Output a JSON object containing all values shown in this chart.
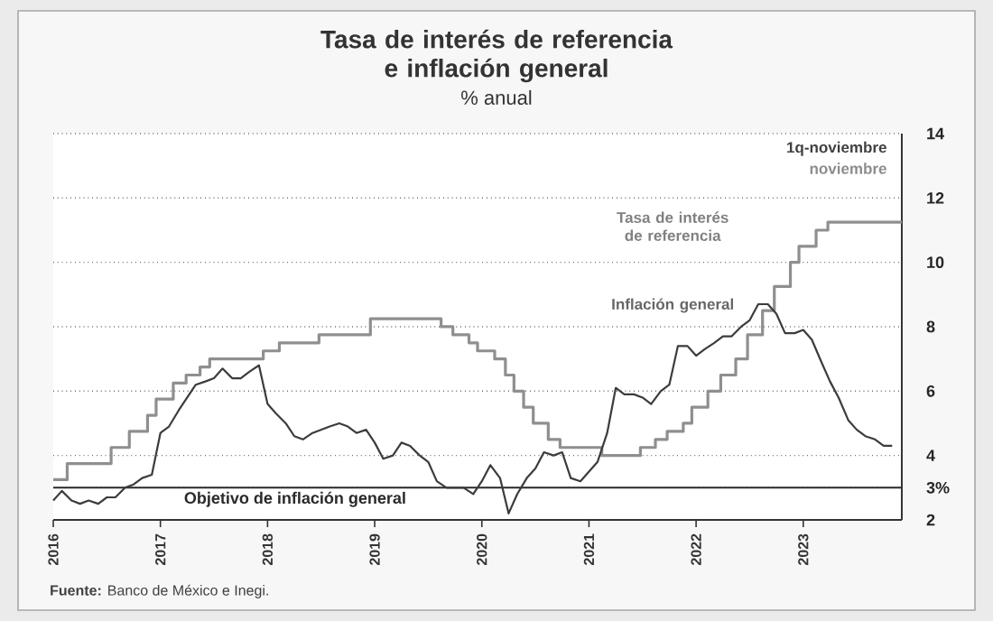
{
  "chart_data": {
    "type": "line",
    "title": "Tasa de interés de referencia e inflación general",
    "subtitle": "% anual",
    "xlim": [
      2016,
      2023.92
    ],
    "xticks": [
      2016,
      2017,
      2018,
      2019,
      2020,
      2021,
      2022,
      2023
    ],
    "ylim": [
      2,
      14
    ],
    "yticks": [
      2,
      {
        "value": 3,
        "label": "3%"
      },
      4,
      6,
      8,
      10,
      12,
      14
    ],
    "grid": "y",
    "series": [
      {
        "name": "Tasa de interés de referencia",
        "type": "step",
        "color": "#8f8f8f",
        "x": [
          2016.0,
          2016.13,
          2016.54,
          2016.71,
          2016.88,
          2016.96,
          2017.12,
          2017.24,
          2017.37,
          2017.46,
          2017.96,
          2018.11,
          2018.48,
          2018.96,
          2019.62,
          2019.73,
          2019.88,
          2019.96,
          2020.12,
          2020.22,
          2020.3,
          2020.39,
          2020.48,
          2020.62,
          2020.73,
          2021.12,
          2021.48,
          2021.62,
          2021.73,
          2021.88,
          2021.96,
          2022.11,
          2022.23,
          2022.37,
          2022.48,
          2022.62,
          2022.73,
          2022.88,
          2022.96,
          2023.12,
          2023.23,
          2023.92
        ],
        "values": [
          3.25,
          3.75,
          4.25,
          4.75,
          5.25,
          5.75,
          6.25,
          6.5,
          6.75,
          7.0,
          7.25,
          7.5,
          7.75,
          8.25,
          8.0,
          7.75,
          7.5,
          7.25,
          7.0,
          6.5,
          6.0,
          5.5,
          5.0,
          4.5,
          4.25,
          4.0,
          4.25,
          4.5,
          4.75,
          5.0,
          5.5,
          6.0,
          6.5,
          7.0,
          7.75,
          8.5,
          9.25,
          10.0,
          10.5,
          11.0,
          11.25,
          11.25
        ]
      },
      {
        "name": "Inflación general",
        "color": "#3c3c3c",
        "x": [
          2016.0,
          2016.08,
          2016.17,
          2016.25,
          2016.33,
          2016.42,
          2016.5,
          2016.58,
          2016.67,
          2016.75,
          2016.83,
          2016.92,
          2017.0,
          2017.08,
          2017.17,
          2017.25,
          2017.33,
          2017.42,
          2017.5,
          2017.58,
          2017.67,
          2017.75,
          2017.83,
          2017.92,
          2018.0,
          2018.08,
          2018.17,
          2018.25,
          2018.33,
          2018.42,
          2018.5,
          2018.58,
          2018.67,
          2018.75,
          2018.83,
          2018.92,
          2019.0,
          2019.08,
          2019.17,
          2019.25,
          2019.33,
          2019.42,
          2019.5,
          2019.58,
          2019.67,
          2019.75,
          2019.83,
          2019.92,
          2020.0,
          2020.08,
          2020.17,
          2020.25,
          2020.33,
          2020.42,
          2020.5,
          2020.58,
          2020.67,
          2020.75,
          2020.83,
          2020.92,
          2021.0,
          2021.08,
          2021.17,
          2021.25,
          2021.33,
          2021.42,
          2021.5,
          2021.58,
          2021.67,
          2021.75,
          2021.83,
          2021.92,
          2022.0,
          2022.08,
          2022.17,
          2022.25,
          2022.33,
          2022.42,
          2022.5,
          2022.58,
          2022.67,
          2022.75,
          2022.83,
          2022.92,
          2023.0,
          2023.08,
          2023.17,
          2023.25,
          2023.33,
          2023.42,
          2023.5,
          2023.58,
          2023.67,
          2023.75,
          2023.83
        ],
        "values": [
          2.6,
          2.9,
          2.6,
          2.5,
          2.6,
          2.5,
          2.7,
          2.7,
          3.0,
          3.1,
          3.3,
          3.4,
          4.7,
          4.9,
          5.4,
          5.8,
          6.2,
          6.3,
          6.4,
          6.7,
          6.4,
          6.4,
          6.6,
          6.8,
          5.6,
          5.3,
          5.0,
          4.6,
          4.5,
          4.7,
          4.8,
          4.9,
          5.0,
          4.9,
          4.7,
          4.8,
          4.4,
          3.9,
          4.0,
          4.4,
          4.3,
          4.0,
          3.8,
          3.2,
          3.0,
          3.0,
          3.0,
          2.8,
          3.2,
          3.7,
          3.3,
          2.2,
          2.8,
          3.3,
          3.6,
          4.1,
          4.0,
          4.1,
          3.3,
          3.2,
          3.5,
          3.8,
          4.7,
          6.1,
          5.9,
          5.9,
          5.8,
          5.6,
          6.0,
          6.2,
          7.4,
          7.4,
          7.1,
          7.3,
          7.5,
          7.7,
          7.7,
          8.0,
          8.2,
          8.7,
          8.7,
          8.4,
          7.8,
          7.8,
          7.9,
          7.6,
          6.9,
          6.3,
          5.8,
          5.1,
          4.8,
          4.6,
          4.5,
          4.3,
          4.3
        ]
      }
    ],
    "ref_lines": [
      {
        "axis": "y",
        "value": 3,
        "label": "Objetivo de inflación general",
        "color": "#2a2a2a"
      }
    ],
    "annotations": [
      "1q-noviembre",
      "noviembre",
      "**Fuente:** Banco de México e Inegi."
    ]
  }
}
